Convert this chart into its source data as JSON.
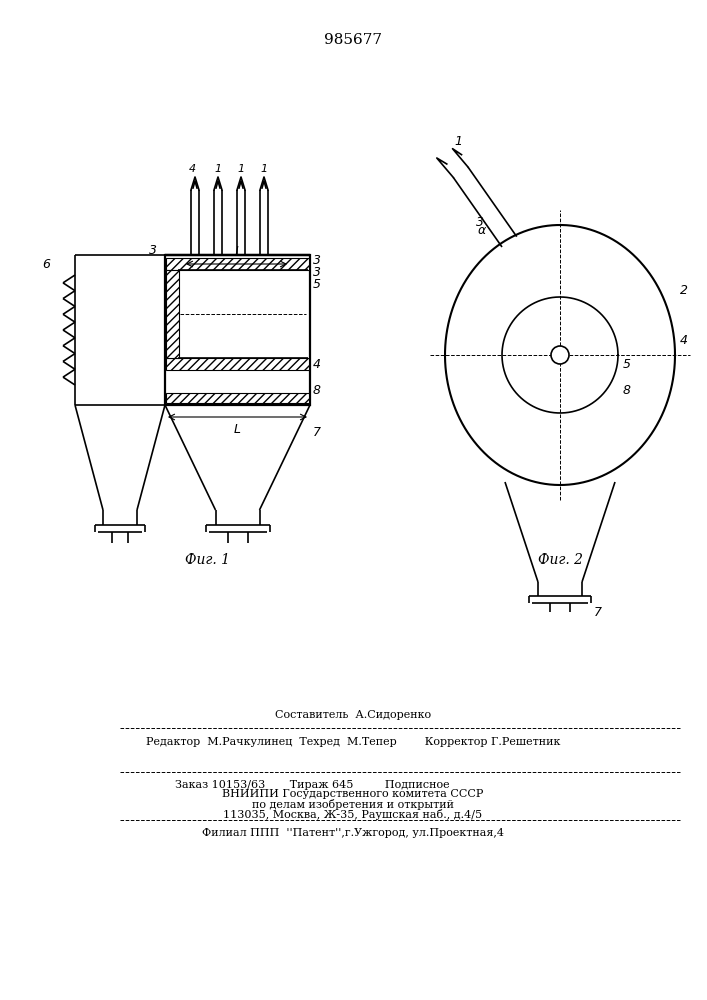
{
  "title": "985677",
  "fig1_caption": "Фиг. 1",
  "fig2_caption": "Фиг. 2",
  "bt1": "Составитель  А.Сидоренко",
  "bt2": "Редактор  М.Рачкулинец  Техред  М.Тепер        Корректор Г.Решетник",
  "bt3": "Заказ 10153/63       Тираж 645         Подписное",
  "bt4": "ВНИИПИ Государственного комитета СССР",
  "bt5": "по делам изобретения и открытий",
  "bt6": "113035, Москва, Ж-35, Раушская наб., д.4/5",
  "bt7": "Филиал ППП  ''Патент'',г.Ужгород, ул.Проектная,4",
  "lc": "#000000",
  "bg": "#ffffff"
}
